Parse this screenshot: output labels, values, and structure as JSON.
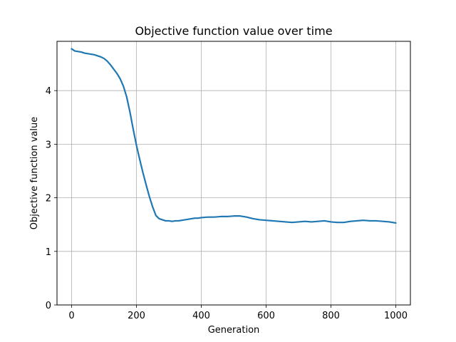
{
  "chart_data": {
    "type": "line",
    "title": "Objective function value over time",
    "xlabel": "Generation",
    "ylabel": "Objective function value",
    "xlim": [
      -45,
      1045
    ],
    "ylim": [
      0,
      4.92
    ],
    "xticks": [
      0,
      200,
      400,
      600,
      800,
      1000
    ],
    "yticks": [
      0,
      1,
      2,
      3,
      4
    ],
    "grid": true,
    "series": [
      {
        "color": "#1f77b4",
        "x": [
          0,
          5,
          10,
          20,
          30,
          40,
          50,
          60,
          70,
          80,
          90,
          100,
          110,
          120,
          130,
          140,
          150,
          160,
          170,
          180,
          190,
          200,
          210,
          220,
          230,
          240,
          250,
          260,
          270,
          280,
          290,
          300,
          310,
          320,
          330,
          340,
          350,
          360,
          370,
          380,
          390,
          400,
          420,
          440,
          460,
          480,
          500,
          520,
          540,
          560,
          580,
          600,
          620,
          640,
          660,
          680,
          700,
          720,
          740,
          760,
          780,
          800,
          820,
          840,
          860,
          880,
          900,
          920,
          940,
          960,
          980,
          1000
        ],
        "y": [
          4.78,
          4.76,
          4.74,
          4.73,
          4.72,
          4.7,
          4.69,
          4.68,
          4.67,
          4.65,
          4.63,
          4.6,
          4.55,
          4.48,
          4.4,
          4.32,
          4.22,
          4.08,
          3.88,
          3.6,
          3.28,
          2.98,
          2.72,
          2.47,
          2.24,
          2.02,
          1.83,
          1.67,
          1.61,
          1.59,
          1.57,
          1.57,
          1.56,
          1.57,
          1.57,
          1.58,
          1.59,
          1.6,
          1.61,
          1.62,
          1.62,
          1.63,
          1.64,
          1.64,
          1.65,
          1.65,
          1.66,
          1.66,
          1.64,
          1.61,
          1.59,
          1.58,
          1.57,
          1.56,
          1.55,
          1.54,
          1.55,
          1.56,
          1.55,
          1.56,
          1.57,
          1.55,
          1.54,
          1.54,
          1.56,
          1.57,
          1.58,
          1.57,
          1.57,
          1.56,
          1.55,
          1.53
        ]
      }
    ]
  }
}
